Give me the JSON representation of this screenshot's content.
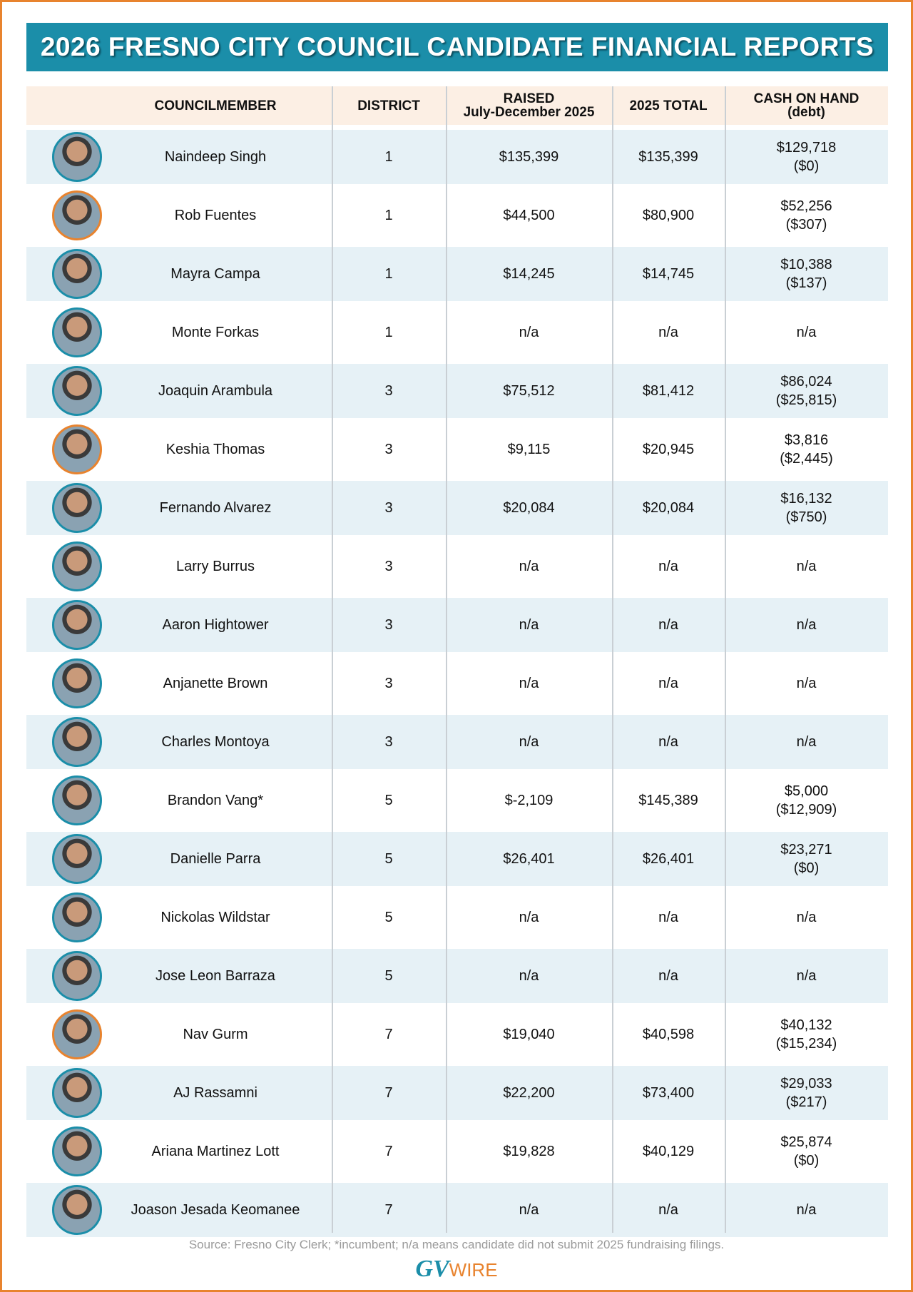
{
  "header": {
    "title": "2026 FRESNO CITY COUNCIL CANDIDATE FINANCIAL REPORTS"
  },
  "table": {
    "columns": [
      [
        "COUNCILMEMBER"
      ],
      [
        "DISTRICT"
      ],
      [
        "RAISED",
        "July-December 2025"
      ],
      [
        "2025 TOTAL"
      ],
      [
        "CASH ON HAND",
        "(debt)"
      ]
    ],
    "rows": [
      {
        "name": "Naindeep Singh",
        "district": "1",
        "raised": "$135,399",
        "total": "$135,399",
        "cash": "$129,718",
        "debt": "($0)"
      },
      {
        "name": "Rob Fuentes",
        "district": "1",
        "raised": "$44,500",
        "total": "$80,900",
        "cash": "$52,256",
        "debt": "($307)"
      },
      {
        "name": "Mayra Campa",
        "district": "1",
        "raised": "$14,245",
        "total": "$14,745",
        "cash": "$10,388",
        "debt": "($137)"
      },
      {
        "name": "Monte Forkas",
        "district": "1",
        "raised": "n/a",
        "total": "n/a",
        "cash": "n/a"
      },
      {
        "name": "Joaquin Arambula",
        "district": "3",
        "raised": "$75,512",
        "total": "$81,412",
        "cash": "$86,024",
        "debt": "($25,815)"
      },
      {
        "name": "Keshia Thomas",
        "district": "3",
        "raised": "$9,115",
        "total": "$20,945",
        "cash": "$3,816",
        "debt": "($2,445)"
      },
      {
        "name": "Fernando Alvarez",
        "district": "3",
        "raised": "$20,084",
        "total": "$20,084",
        "cash": "$16,132",
        "debt": "($750)"
      },
      {
        "name": "Larry Burrus",
        "district": "3",
        "raised": "n/a",
        "total": "n/a",
        "cash": "n/a"
      },
      {
        "name": "Aaron Hightower",
        "district": "3",
        "raised": "n/a",
        "total": "n/a",
        "cash": "n/a"
      },
      {
        "name": "Anjanette Brown",
        "district": "3",
        "raised": "n/a",
        "total": "n/a",
        "cash": "n/a"
      },
      {
        "name": "Charles Montoya",
        "district": "3",
        "raised": "n/a",
        "total": "n/a",
        "cash": "n/a"
      },
      {
        "name": "Brandon Vang*",
        "district": "5",
        "raised": "$-2,109",
        "total": "$145,389",
        "cash": "$5,000",
        "debt": "($12,909)"
      },
      {
        "name": "Danielle Parra",
        "district": "5",
        "raised": "$26,401",
        "total": "$26,401",
        "cash": "$23,271",
        "debt": "($0)"
      },
      {
        "name": "Nickolas Wildstar",
        "district": "5",
        "raised": "n/a",
        "total": "n/a",
        "cash": "n/a"
      },
      {
        "name": "Jose Leon Barraza",
        "district": "5",
        "raised": "n/a",
        "total": "n/a",
        "cash": "n/a"
      },
      {
        "name": "Nav Gurm",
        "district": "7",
        "raised": "$19,040",
        "total": "$40,598",
        "cash": "$40,132",
        "debt": "($15,234)"
      },
      {
        "name": "AJ Rassamni",
        "district": "7",
        "raised": "$22,200",
        "total": "$73,400",
        "cash": "$29,033",
        "debt": "($217)"
      },
      {
        "name": "Ariana Martinez Lott",
        "district": "7",
        "raised": "$19,828",
        "total": "$40,129",
        "cash": "$25,874",
        "debt": "($0)"
      },
      {
        "name": "Joason Jesada Keomanee",
        "district": "7",
        "raised": "n/a",
        "total": "n/a",
        "cash": "n/a"
      }
    ]
  },
  "footer": {
    "source": "Source: Fresno City Clerk;  *incumbent; n/a means candidate did not submit 2025 fundraising filings.",
    "logo_gv": "GV",
    "logo_wire": "WIRE"
  }
}
